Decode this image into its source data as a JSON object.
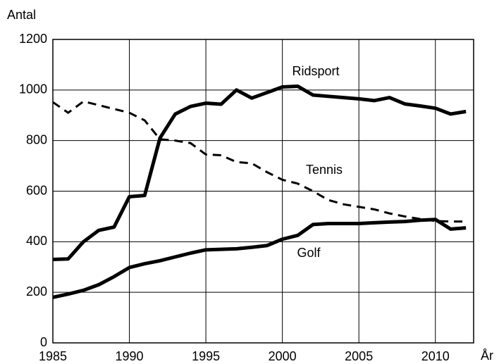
{
  "chart_data": {
    "type": "line",
    "y_label": "Antal",
    "x_label": "År",
    "x": [
      1985,
      1986,
      1987,
      1988,
      1989,
      1990,
      1991,
      1992,
      1993,
      1994,
      1995,
      1996,
      1997,
      1998,
      1999,
      2000,
      2001,
      2002,
      2003,
      2004,
      2005,
      2006,
      2007,
      2008,
      2009,
      2010,
      2011,
      2012
    ],
    "series": [
      {
        "name": "Ridsport",
        "color": "#000000",
        "dashed": false,
        "values": [
          330,
          332,
          400,
          445,
          458,
          578,
          583,
          810,
          905,
          935,
          948,
          944,
          1000,
          968,
          990,
          1012,
          1015,
          980,
          975,
          970,
          965,
          958,
          970,
          945,
          937,
          928,
          905,
          915
        ]
      },
      {
        "name": "Tennis",
        "color": "#000000",
        "dashed": true,
        "values": [
          952,
          910,
          955,
          940,
          925,
          910,
          880,
          805,
          800,
          790,
          745,
          742,
          715,
          710,
          675,
          645,
          630,
          600,
          565,
          548,
          538,
          528,
          512,
          500,
          490,
          482,
          480,
          480
        ]
      },
      {
        "name": "Golf",
        "color": "#000000",
        "dashed": false,
        "values": [
          180,
          193,
          208,
          230,
          262,
          298,
          313,
          325,
          340,
          355,
          368,
          370,
          372,
          378,
          385,
          410,
          425,
          468,
          472,
          472,
          472,
          475,
          478,
          480,
          485,
          488,
          450,
          455
        ]
      }
    ],
    "xlim": [
      1985,
      2012.5
    ],
    "xticks": [
      1985,
      1990,
      1995,
      2000,
      2005,
      2010
    ],
    "ylim": [
      0,
      1200
    ],
    "yticks": [
      0,
      200,
      400,
      600,
      800,
      1000,
      1200
    ],
    "grid": true
  }
}
